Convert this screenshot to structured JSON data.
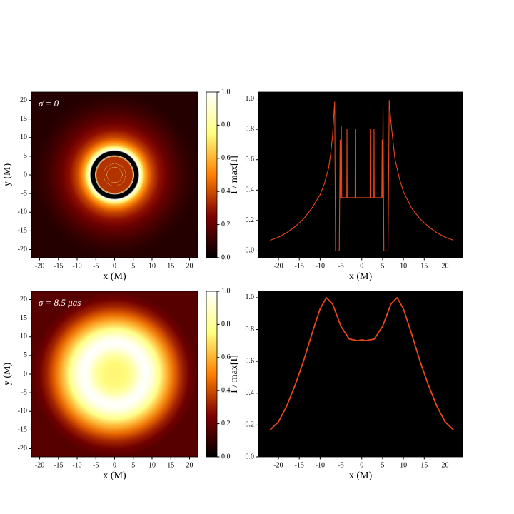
{
  "chart_data": [
    {
      "type": "image",
      "annotation": "σ = 0",
      "xlabel": "x (M)",
      "ylabel": "y (M)",
      "xlim": [
        -22.2,
        22.2
      ],
      "ylim": [
        -22.2,
        22.2
      ],
      "xticks": [
        -20,
        -15,
        -10,
        -5,
        0,
        5,
        10,
        15,
        20
      ],
      "yticks": [
        -20,
        -15,
        -10,
        -5,
        0,
        5,
        10,
        15,
        20
      ],
      "colormap": "afmhot",
      "colorbar": {
        "ylim": [
          0,
          1
        ],
        "yticks": [
          {
            "value": 0,
            "label": "0.0"
          },
          {
            "value": 0.2,
            "label": "0.2"
          },
          {
            "value": 0.4,
            "label": "0.4"
          },
          {
            "value": 0.6,
            "label": "0.6"
          },
          {
            "value": 0.8,
            "label": "0.8"
          },
          {
            "value": 1,
            "label": "1.0"
          }
        ]
      }
    },
    {
      "type": "line",
      "xlabel": "x (M)",
      "ylabel": "I / max[I]",
      "color": "#e8461c",
      "xlim": [
        -24.8,
        24.2
      ],
      "ylim": [
        -0.045,
        1.045
      ],
      "xticks": [
        -20,
        -15,
        -10,
        -5,
        0,
        5,
        10,
        15,
        20
      ],
      "yticks": [
        {
          "value": 0,
          "label": "0.0"
        },
        {
          "value": 0.2,
          "label": "0.2"
        },
        {
          "value": 0.4,
          "label": "0.4"
        },
        {
          "value": 0.6,
          "label": "0.6"
        },
        {
          "value": 0.8,
          "label": "0.8"
        },
        {
          "value": 1,
          "label": "1.0"
        }
      ],
      "x": [
        -22,
        -20,
        -18,
        -16,
        -14,
        -12,
        -10,
        -9,
        -8,
        -7.5,
        -7,
        -6.7,
        -6.5,
        -6.3,
        -5.4,
        -5.2,
        -5.1,
        -4.9,
        -4.8,
        -3.6,
        -3.55,
        -3.5,
        -1.6,
        -1.55,
        -1.5,
        2,
        2.05,
        2.1,
        2.9,
        2.95,
        3,
        4.8,
        4.9,
        5,
        5.1,
        5.3,
        6.3,
        6.6,
        7,
        7.5,
        8,
        9,
        10,
        12,
        14,
        16,
        18,
        20,
        22
      ],
      "values": [
        0.07,
        0.09,
        0.12,
        0.16,
        0.21,
        0.28,
        0.37,
        0.44,
        0.54,
        0.63,
        0.76,
        0.9,
        0.98,
        0,
        0,
        0.73,
        0.35,
        0.82,
        0.35,
        0.35,
        0.8,
        0.35,
        0.35,
        0.8,
        0.35,
        0.35,
        0.8,
        0.35,
        0.35,
        0.8,
        0.35,
        0.35,
        0.73,
        0.35,
        0.95,
        0,
        0,
        0.99,
        0.85,
        0.72,
        0.6,
        0.48,
        0.39,
        0.28,
        0.21,
        0.16,
        0.12,
        0.09,
        0.07
      ]
    },
    {
      "type": "image",
      "annotation": "σ = 8.5 μas",
      "xlabel": "x (M)",
      "ylabel": "y (M)",
      "xlim": [
        -22.2,
        22.2
      ],
      "ylim": [
        -22.2,
        22.2
      ],
      "xticks": [
        -20,
        -15,
        -10,
        -5,
        0,
        5,
        10,
        15,
        20
      ],
      "yticks": [
        -20,
        -15,
        -10,
        -5,
        0,
        5,
        10,
        15,
        20
      ],
      "colormap": "afmhot",
      "colorbar": {
        "ylim": [
          0,
          1
        ],
        "yticks": [
          {
            "value": 0,
            "label": "0.0"
          },
          {
            "value": 0.2,
            "label": "0.2"
          },
          {
            "value": 0.4,
            "label": "0.4"
          },
          {
            "value": 0.6,
            "label": "0.6"
          },
          {
            "value": 0.8,
            "label": "0.8"
          },
          {
            "value": 1,
            "label": "1.0"
          }
        ]
      }
    },
    {
      "type": "line",
      "xlabel": "x (M)",
      "ylabel": "I / max[I]",
      "color": "#e8461c",
      "xlim": [
        -24.8,
        24.2
      ],
      "ylim": [
        0,
        1.04
      ],
      "xticks": [
        -20,
        -15,
        -10,
        -5,
        0,
        5,
        10,
        15,
        20
      ],
      "yticks": [
        {
          "value": 0,
          "label": "0.0"
        },
        {
          "value": 0.2,
          "label": "0.2"
        },
        {
          "value": 0.4,
          "label": "0.4"
        },
        {
          "value": 0.6,
          "label": "0.6"
        },
        {
          "value": 0.8,
          "label": "0.8"
        },
        {
          "value": 1,
          "label": "1.0"
        }
      ],
      "x": [
        -22,
        -20,
        -18,
        -16,
        -14,
        -12,
        -10,
        -8.5,
        -7,
        -5,
        -3,
        -1,
        0,
        1,
        3,
        5,
        7,
        8.5,
        10,
        12,
        14,
        16,
        18,
        20,
        22
      ],
      "values": [
        0.17,
        0.22,
        0.32,
        0.45,
        0.6,
        0.77,
        0.93,
        1.0,
        0.96,
        0.82,
        0.74,
        0.73,
        0.735,
        0.73,
        0.74,
        0.82,
        0.96,
        1.0,
        0.93,
        0.77,
        0.6,
        0.45,
        0.32,
        0.22,
        0.17
      ]
    }
  ]
}
